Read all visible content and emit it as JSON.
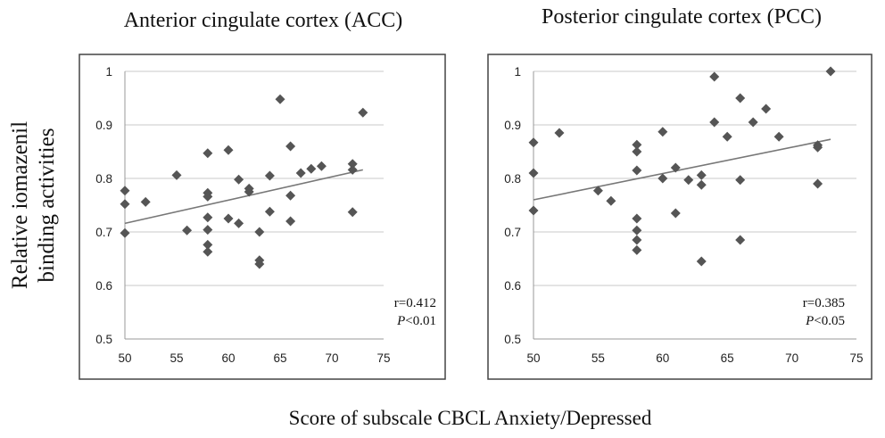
{
  "ylabel_line1": "Relative iomazenil",
  "ylabel_line2": "binding activities",
  "xlabel": "Score of subscale CBCL Anxiety/Depressed",
  "chart_data": [
    {
      "type": "scatter",
      "title": "Anterior cingulate cortex (ACC)",
      "xlim": [
        50,
        75
      ],
      "ylim": [
        0.5,
        1
      ],
      "xticks": [
        "50",
        "55",
        "60",
        "65",
        "70",
        "75"
      ],
      "yticks": [
        "0.5",
        "0.6",
        "0.7",
        "0.8",
        "0.9",
        "1"
      ],
      "grid": true,
      "r_label": "r=0.412",
      "p_italic": "P",
      "p_rest": "<0.01",
      "trendline": {
        "x": [
          50,
          73
        ],
        "y": [
          0.716,
          0.816
        ]
      },
      "points": [
        [
          50,
          0.777
        ],
        [
          50,
          0.752
        ],
        [
          50,
          0.698
        ],
        [
          52,
          0.756
        ],
        [
          55,
          0.806
        ],
        [
          56,
          0.703
        ],
        [
          58,
          0.847
        ],
        [
          58,
          0.773
        ],
        [
          58,
          0.766
        ],
        [
          58,
          0.727
        ],
        [
          58,
          0.704
        ],
        [
          58,
          0.676
        ],
        [
          58,
          0.663
        ],
        [
          60,
          0.853
        ],
        [
          60,
          0.725
        ],
        [
          61,
          0.798
        ],
        [
          61,
          0.716
        ],
        [
          62,
          0.781
        ],
        [
          62,
          0.775
        ],
        [
          63,
          0.7
        ],
        [
          63,
          0.647
        ],
        [
          63,
          0.64
        ],
        [
          64,
          0.805
        ],
        [
          64,
          0.738
        ],
        [
          65,
          0.948
        ],
        [
          66,
          0.86
        ],
        [
          66,
          0.768
        ],
        [
          66,
          0.72
        ],
        [
          67,
          0.81
        ],
        [
          68,
          0.818
        ],
        [
          69,
          0.823
        ],
        [
          72,
          0.827
        ],
        [
          72,
          0.816
        ],
        [
          72,
          0.737
        ],
        [
          73,
          0.923
        ]
      ]
    },
    {
      "type": "scatter",
      "title": "Posterior cingulate cortex (PCC)",
      "xlim": [
        50,
        75
      ],
      "ylim": [
        0.5,
        1
      ],
      "xticks": [
        "50",
        "55",
        "60",
        "65",
        "70",
        "75"
      ],
      "yticks": [
        "0.5",
        "0.6",
        "0.7",
        "0.8",
        "0.9",
        "1"
      ],
      "grid": true,
      "r_label": "r=0.385",
      "p_italic": "P",
      "p_rest": "<0.05",
      "trendline": {
        "x": [
          50,
          73
        ],
        "y": [
          0.76,
          0.873
        ]
      },
      "points": [
        [
          50,
          0.867
        ],
        [
          50,
          0.81
        ],
        [
          50,
          0.74
        ],
        [
          52,
          0.885
        ],
        [
          55,
          0.777
        ],
        [
          56,
          0.758
        ],
        [
          58,
          0.863
        ],
        [
          58,
          0.85
        ],
        [
          58,
          0.815
        ],
        [
          58,
          0.725
        ],
        [
          58,
          0.703
        ],
        [
          58,
          0.685
        ],
        [
          58,
          0.666
        ],
        [
          60,
          0.887
        ],
        [
          60,
          0.8
        ],
        [
          61,
          0.82
        ],
        [
          61,
          0.735
        ],
        [
          62,
          0.797
        ],
        [
          63,
          0.806
        ],
        [
          63,
          0.788
        ],
        [
          63,
          0.645
        ],
        [
          64,
          0.99
        ],
        [
          64,
          0.905
        ],
        [
          65,
          0.878
        ],
        [
          66,
          0.95
        ],
        [
          66,
          0.797
        ],
        [
          66,
          0.685
        ],
        [
          67,
          0.905
        ],
        [
          68,
          0.93
        ],
        [
          69,
          0.878
        ],
        [
          72,
          0.862
        ],
        [
          72,
          0.858
        ],
        [
          72,
          0.79
        ],
        [
          73,
          1.0
        ]
      ]
    }
  ]
}
